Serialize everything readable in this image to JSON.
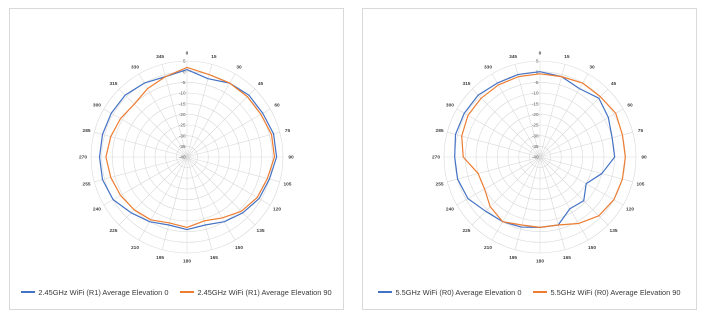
{
  "chart_data": [
    {
      "type": "polar-line",
      "angular_axis": {
        "ticks": [
          0,
          15,
          30,
          45,
          60,
          75,
          90,
          105,
          120,
          135,
          150,
          165,
          180,
          195,
          210,
          225,
          240,
          255,
          270,
          285,
          300,
          315,
          330,
          345
        ]
      },
      "radial_axis": {
        "ticks": [
          5,
          0,
          -5,
          -10,
          -15,
          -20,
          -25,
          -30,
          -35,
          -40
        ],
        "range": [
          -40,
          5
        ]
      },
      "series": [
        {
          "name": "2.45GHz WiFi (R1) Average Elevation 0",
          "color": "#4472c4",
          "angles": [
            0,
            15,
            30,
            45,
            60,
            75,
            90,
            105,
            120,
            135,
            150,
            165,
            180,
            195,
            210,
            225,
            240,
            255,
            270,
            285,
            300,
            315,
            330,
            345
          ],
          "values": [
            1,
            -2,
            0,
            1,
            1,
            2,
            2,
            0,
            -1,
            -3,
            -5,
            -7,
            -6,
            -7,
            -5,
            -3,
            0,
            1,
            1,
            1,
            1,
            1,
            0,
            -1
          ]
        },
        {
          "name": "2.45GHz WiFi (R1) Average Elevation 90",
          "color": "#ed7d31",
          "angles": [
            0,
            15,
            30,
            45,
            60,
            75,
            90,
            105,
            120,
            135,
            150,
            165,
            180,
            195,
            210,
            225,
            240,
            255,
            270,
            285,
            300,
            315,
            330,
            345
          ],
          "values": [
            2,
            0,
            0,
            0,
            0,
            1,
            1,
            -1,
            -2,
            -4,
            -7,
            -9,
            -7,
            -8,
            -6,
            -5,
            -4,
            -3,
            -2,
            -3,
            -4,
            -5,
            -3,
            -1
          ]
        }
      ]
    },
    {
      "type": "polar-line",
      "angular_axis": {
        "ticks": [
          0,
          15,
          30,
          45,
          60,
          75,
          90,
          105,
          120,
          135,
          150,
          165,
          180,
          195,
          210,
          225,
          240,
          255,
          270,
          285,
          300,
          315,
          330,
          345
        ]
      },
      "radial_axis": {
        "ticks": [
          5,
          0,
          -5,
          -10,
          -15,
          -20,
          -25,
          -30,
          -35,
          -40
        ],
        "range": [
          -40,
          5
        ]
      },
      "series": [
        {
          "name": "5.5GHz WiFi (R0) Average Elevation 0",
          "color": "#4472c4",
          "angles": [
            0,
            15,
            30,
            45,
            60,
            75,
            90,
            105,
            120,
            135,
            150,
            165,
            180,
            195,
            210,
            225,
            240,
            255,
            270,
            285,
            300,
            315,
            330,
            345
          ],
          "values": [
            0,
            -1,
            -3,
            -1,
            -3,
            -5,
            -5,
            -10,
            -15,
            -11,
            -12,
            -7,
            -7,
            -6,
            -5,
            -4,
            -1,
            0,
            0,
            1,
            1,
            1,
            0,
            0
          ]
        },
        {
          "name": "5.5GHz WiFi (R0) Average Elevation 90",
          "color": "#ed7d31",
          "angles": [
            0,
            15,
            30,
            45,
            60,
            75,
            90,
            105,
            120,
            135,
            150,
            165,
            180,
            195,
            210,
            225,
            240,
            255,
            270,
            285,
            300,
            315,
            330,
            345
          ],
          "values": [
            -1,
            -1,
            0,
            0,
            1,
            0,
            0,
            0,
            0,
            -1,
            -4,
            -7,
            -7,
            -7,
            -5,
            -7,
            -10,
            -10,
            -4,
            -2,
            -1,
            -1,
            -1,
            -1
          ]
        }
      ]
    }
  ]
}
